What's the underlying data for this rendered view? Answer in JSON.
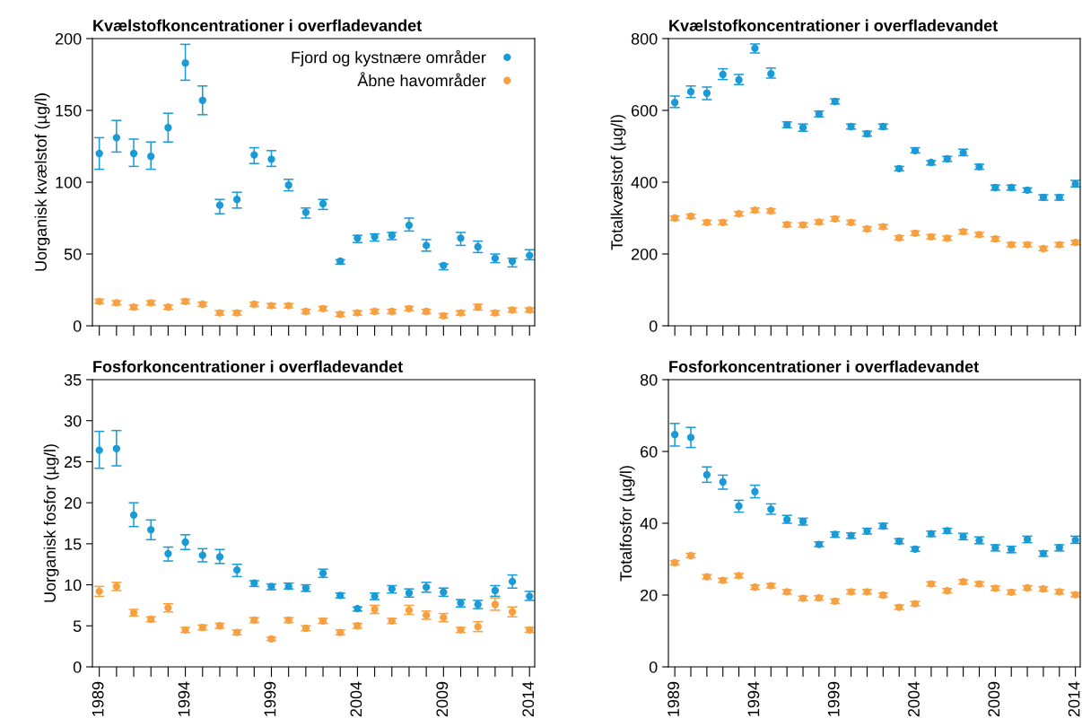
{
  "chart_data": [
    {
      "type": "scatter",
      "title": "Kvælstofkoncentrationer i overfladevandet",
      "ylabel": "Uorganisk kvælstof (µg/l)",
      "x": [
        1989,
        1990,
        1991,
        1992,
        1993,
        1994,
        1995,
        1996,
        1997,
        1998,
        1999,
        2000,
        2001,
        2002,
        2003,
        2004,
        2005,
        2006,
        2007,
        2008,
        2009,
        2010,
        2011,
        2012,
        2013,
        2014
      ],
      "xlim": [
        1988.6,
        2014.3
      ],
      "xticks": [
        1989,
        {
          "value": 1990,
          "label": null
        },
        {
          "value": 1991,
          "label": null
        },
        {
          "value": 1992,
          "label": null
        },
        {
          "value": 1993,
          "label": null
        },
        1994,
        {
          "value": 1995,
          "label": null
        },
        {
          "value": 1996,
          "label": null
        },
        {
          "value": 1997,
          "label": null
        },
        {
          "value": 1998,
          "label": null
        },
        1999,
        {
          "value": 2000,
          "label": null
        },
        {
          "value": 2001,
          "label": null
        },
        {
          "value": 2002,
          "label": null
        },
        {
          "value": 2003,
          "label": null
        },
        2004,
        {
          "value": 2005,
          "label": null
        },
        {
          "value": 2006,
          "label": null
        },
        {
          "value": 2007,
          "label": null
        },
        {
          "value": 2008,
          "label": null
        },
        2009,
        {
          "value": 2010,
          "label": null
        },
        {
          "value": 2011,
          "label": null
        },
        {
          "value": 2012,
          "label": null
        },
        {
          "value": 2013,
          "label": null
        },
        2014
      ],
      "ylim": [
        0,
        200
      ],
      "yticks": [
        0,
        50,
        100,
        150,
        200
      ],
      "tick_labels": "y",
      "grid": false,
      "legend": "top right",
      "marker": "circle",
      "series": [
        {
          "name": "Fjord og kystnære områder",
          "color": "#1a9ad6",
          "values": [
            120,
            131,
            120,
            118,
            138,
            183,
            157,
            84,
            88,
            119,
            116,
            98,
            79,
            85,
            45,
            61,
            62,
            63,
            70,
            56,
            42,
            61,
            55,
            47,
            45,
            49
          ],
          "errors": [
            [
              109,
              131
            ],
            [
              121,
              143
            ],
            [
              111,
              130
            ],
            [
              109,
              128
            ],
            [
              128,
              148
            ],
            [
              171,
              196
            ],
            [
              147,
              167
            ],
            [
              78,
              88
            ],
            [
              82,
              93
            ],
            [
              113,
              124
            ],
            [
              111,
              122
            ],
            [
              94,
              102
            ],
            [
              75,
              82
            ],
            [
              81,
              88
            ],
            [
              43,
              46
            ],
            [
              58,
              63
            ],
            [
              59,
              64
            ],
            [
              60,
              65
            ],
            [
              66,
              75
            ],
            [
              52,
              60
            ],
            [
              39,
              43
            ],
            [
              56,
              65
            ],
            [
              51,
              59
            ],
            [
              44,
              50
            ],
            [
              41,
              47
            ],
            [
              46,
              53
            ]
          ]
        },
        {
          "name": "Åbne havområder",
          "color": "#f7a040",
          "values": [
            17,
            16,
            13,
            16,
            13,
            17,
            15,
            9,
            9,
            15,
            14,
            14,
            10,
            12,
            8,
            9,
            10,
            10,
            12,
            10,
            7,
            9,
            13,
            9,
            11,
            11
          ],
          "errors": [
            1.5,
            1.5,
            1.5,
            1.5,
            1.5,
            1.5,
            1.5,
            1.5,
            1.5,
            1.5,
            1.5,
            1.5,
            1.5,
            1.5,
            1.5,
            1.5,
            1.5,
            1.5,
            1.5,
            1.5,
            1.5,
            1.5,
            2,
            1.5,
            1.5,
            1.5
          ]
        }
      ]
    },
    {
      "type": "scatter",
      "title": "Kvælstofkoncentrationer i overfladevandet",
      "ylabel": "Totalkvælstof (µg/l)",
      "x": [
        1989,
        1990,
        1991,
        1992,
        1993,
        1994,
        1995,
        1996,
        1997,
        1998,
        1999,
        2000,
        2001,
        2002,
        2003,
        2004,
        2005,
        2006,
        2007,
        2008,
        2009,
        2010,
        2011,
        2012,
        2013,
        2014
      ],
      "xlim": [
        1988.6,
        2014.3
      ],
      "xticks": [
        1989,
        {
          "value": 1990,
          "label": null
        },
        {
          "value": 1991,
          "label": null
        },
        {
          "value": 1992,
          "label": null
        },
        {
          "value": 1993,
          "label": null
        },
        1994,
        {
          "value": 1995,
          "label": null
        },
        {
          "value": 1996,
          "label": null
        },
        {
          "value": 1997,
          "label": null
        },
        {
          "value": 1998,
          "label": null
        },
        1999,
        {
          "value": 2000,
          "label": null
        },
        {
          "value": 2001,
          "label": null
        },
        {
          "value": 2002,
          "label": null
        },
        {
          "value": 2003,
          "label": null
        },
        2004,
        {
          "value": 2005,
          "label": null
        },
        {
          "value": 2006,
          "label": null
        },
        {
          "value": 2007,
          "label": null
        },
        {
          "value": 2008,
          "label": null
        },
        2009,
        {
          "value": 2010,
          "label": null
        },
        {
          "value": 2011,
          "label": null
        },
        {
          "value": 2012,
          "label": null
        },
        {
          "value": 2013,
          "label": null
        },
        2014
      ],
      "ylim": [
        0,
        800
      ],
      "yticks": [
        0,
        200,
        400,
        600,
        800
      ],
      "tick_labels": "y",
      "grid": false,
      "marker": "circle",
      "series": [
        {
          "color": "#1a9ad6",
          "values": [
            622,
            652,
            648,
            700,
            685,
            773,
            702,
            560,
            552,
            590,
            625,
            555,
            535,
            555,
            438,
            488,
            455,
            465,
            482,
            443,
            385,
            385,
            378,
            358,
            358,
            395
          ],
          "errors": [
            [
              608,
              640
            ],
            [
              636,
              668
            ],
            [
              630,
              665
            ],
            [
              686,
              716
            ],
            [
              672,
              700
            ],
            [
              760,
              785
            ],
            [
              690,
              718
            ],
            [
              552,
              568
            ],
            [
              542,
              562
            ],
            [
              582,
              598
            ],
            [
              618,
              632
            ],
            [
              548,
              562
            ],
            [
              528,
              542
            ],
            [
              548,
              562
            ],
            [
              432,
              444
            ],
            [
              482,
              496
            ],
            [
              448,
              460
            ],
            [
              458,
              472
            ],
            [
              474,
              492
            ],
            [
              436,
              450
            ],
            [
              378,
              392
            ],
            [
              378,
              392
            ],
            [
              372,
              384
            ],
            [
              350,
              365
            ],
            [
              350,
              365
            ],
            [
              387,
              405
            ]
          ]
        },
        {
          "color": "#f7a040",
          "values": [
            300,
            305,
            288,
            288,
            312,
            322,
            320,
            282,
            281,
            289,
            298,
            288,
            270,
            276,
            245,
            258,
            248,
            244,
            262,
            254,
            242,
            226,
            226,
            215,
            226,
            232
          ],
          "errors": [
            6,
            6,
            6,
            6,
            6,
            6,
            6,
            6,
            6,
            6,
            6,
            6,
            6,
            6,
            6,
            6,
            6,
            6,
            6,
            6,
            6,
            6,
            6,
            6,
            6,
            6
          ]
        }
      ]
    },
    {
      "type": "scatter",
      "title": "Fosforkoncentrationer i overfladevandet",
      "ylabel": "Uorganisk fosfor (µg/l)",
      "x": [
        1989,
        1990,
        1991,
        1992,
        1993,
        1994,
        1995,
        1996,
        1997,
        1998,
        1999,
        2000,
        2001,
        2002,
        2003,
        2004,
        2005,
        2006,
        2007,
        2008,
        2009,
        2010,
        2011,
        2012,
        2013,
        2014
      ],
      "xlim": [
        1988.6,
        2014.3
      ],
      "xticks": [
        1989,
        {
          "value": 1990,
          "label": null
        },
        {
          "value": 1991,
          "label": null
        },
        {
          "value": 1992,
          "label": null
        },
        {
          "value": 1993,
          "label": null
        },
        1994,
        {
          "value": 1995,
          "label": null
        },
        {
          "value": 1996,
          "label": null
        },
        {
          "value": 1997,
          "label": null
        },
        {
          "value": 1998,
          "label": null
        },
        1999,
        {
          "value": 2000,
          "label": null
        },
        {
          "value": 2001,
          "label": null
        },
        {
          "value": 2002,
          "label": null
        },
        {
          "value": 2003,
          "label": null
        },
        2004,
        {
          "value": 2005,
          "label": null
        },
        {
          "value": 2006,
          "label": null
        },
        {
          "value": 2007,
          "label": null
        },
        {
          "value": 2008,
          "label": null
        },
        2009,
        {
          "value": 2010,
          "label": null
        },
        {
          "value": 2011,
          "label": null
        },
        {
          "value": 2012,
          "label": null
        },
        {
          "value": 2013,
          "label": null
        },
        2014
      ],
      "ylim": [
        0,
        35
      ],
      "yticks": [
        0,
        5,
        10,
        15,
        20,
        25,
        30,
        35
      ],
      "grid": false,
      "marker": "circle",
      "series": [
        {
          "color": "#1a9ad6",
          "values": [
            26.4,
            26.6,
            18.5,
            16.7,
            13.8,
            15.2,
            13.6,
            13.4,
            11.8,
            10.2,
            9.8,
            9.8,
            9.6,
            11.4,
            8.7,
            7.1,
            8.6,
            9.5,
            9.0,
            9.7,
            9.1,
            7.8,
            7.6,
            9.3,
            10.4,
            8.6
          ],
          "errors": [
            [
              24.2,
              28.7
            ],
            [
              24.5,
              28.8
            ],
            [
              17.1,
              20.0
            ],
            [
              15.5,
              17.9
            ],
            [
              12.9,
              14.6
            ],
            [
              14.3,
              16.1
            ],
            [
              12.8,
              14.4
            ],
            [
              12.6,
              14.3
            ],
            [
              11.0,
              12.5
            ],
            [
              9.8,
              10.5
            ],
            [
              9.4,
              10.1
            ],
            [
              9.5,
              10.2
            ],
            [
              9.2,
              10.0
            ],
            [
              10.9,
              11.9
            ],
            [
              8.4,
              9.0
            ],
            [
              6.8,
              7.3
            ],
            [
              8.2,
              9.0
            ],
            [
              9.0,
              9.9
            ],
            [
              8.5,
              9.5
            ],
            [
              9.1,
              10.3
            ],
            [
              8.6,
              9.6
            ],
            [
              7.3,
              8.2
            ],
            [
              7.1,
              8.1
            ],
            [
              8.6,
              9.9
            ],
            [
              9.6,
              11.2
            ],
            [
              8.1,
              9.2
            ]
          ]
        },
        {
          "color": "#f7a040",
          "values": [
            9.2,
            9.8,
            6.6,
            5.8,
            7.2,
            4.5,
            4.8,
            5.0,
            4.2,
            5.7,
            3.4,
            5.7,
            4.7,
            5.6,
            4.2,
            5.0,
            7.0,
            5.6,
            6.9,
            6.3,
            6.0,
            4.5,
            4.9,
            7.6,
            6.7,
            4.5
          ],
          "errors": [
            [
              8.6,
              9.8
            ],
            [
              9.3,
              10.3
            ],
            [
              6.2,
              7.0
            ],
            [
              5.5,
              6.1
            ],
            [
              6.7,
              7.7
            ],
            0.3,
            0.3,
            0.3,
            0.3,
            0.3,
            0.2,
            0.3,
            0.3,
            0.3,
            0.3,
            0.3,
            [
              6.5,
              7.5
            ],
            0.3,
            [
              6.4,
              7.5
            ],
            [
              5.8,
              6.8
            ],
            [
              5.5,
              6.5
            ],
            0.3,
            [
              4.3,
              5.5
            ],
            [
              6.9,
              8.4
            ],
            [
              6.1,
              7.3
            ],
            0.3
          ]
        }
      ]
    },
    {
      "type": "scatter",
      "title": "Fosforkoncentrationer i overfladevandet",
      "ylabel": "Totalfosfor (µg/l)",
      "x": [
        1989,
        1990,
        1991,
        1992,
        1993,
        1994,
        1995,
        1996,
        1997,
        1998,
        1999,
        2000,
        2001,
        2002,
        2003,
        2004,
        2005,
        2006,
        2007,
        2008,
        2009,
        2010,
        2011,
        2012,
        2013,
        2014
      ],
      "xlim": [
        1988.6,
        2014.3
      ],
      "xticks": [
        1989,
        {
          "value": 1990,
          "label": null
        },
        {
          "value": 1991,
          "label": null
        },
        {
          "value": 1992,
          "label": null
        },
        {
          "value": 1993,
          "label": null
        },
        1994,
        {
          "value": 1995,
          "label": null
        },
        {
          "value": 1996,
          "label": null
        },
        {
          "value": 1997,
          "label": null
        },
        {
          "value": 1998,
          "label": null
        },
        1999,
        {
          "value": 2000,
          "label": null
        },
        {
          "value": 2001,
          "label": null
        },
        {
          "value": 2002,
          "label": null
        },
        {
          "value": 2003,
          "label": null
        },
        2004,
        {
          "value": 2005,
          "label": null
        },
        {
          "value": 2006,
          "label": null
        },
        {
          "value": 2007,
          "label": null
        },
        {
          "value": 2008,
          "label": null
        },
        2009,
        {
          "value": 2010,
          "label": null
        },
        {
          "value": 2011,
          "label": null
        },
        {
          "value": 2012,
          "label": null
        },
        {
          "value": 2013,
          "label": null
        },
        2014
      ],
      "ylim": [
        0,
        80
      ],
      "yticks": [
        0,
        20,
        40,
        60,
        80
      ],
      "grid": false,
      "marker": "circle",
      "series": [
        {
          "color": "#1a9ad6",
          "values": [
            64.7,
            63.9,
            53.5,
            51.5,
            44.8,
            48.8,
            43.9,
            41.0,
            40.5,
            34.1,
            36.9,
            36.6,
            37.8,
            39.2,
            35.0,
            32.8,
            37.1,
            37.9,
            36.3,
            35.2,
            33.2,
            32.7,
            35.5,
            31.6,
            33.2,
            35.3
          ],
          "errors": [
            [
              61.5,
              67.8
            ],
            [
              61.1,
              66.7
            ],
            [
              51.4,
              55.7
            ],
            [
              49.5,
              53.4
            ],
            [
              43.1,
              46.4
            ],
            [
              47.1,
              50.6
            ],
            [
              42.5,
              45.4
            ],
            [
              40.0,
              42.2
            ],
            [
              39.5,
              41.4
            ],
            [
              33.5,
              34.8
            ],
            [
              36.1,
              37.6
            ],
            [
              35.8,
              37.3
            ],
            [
              37.0,
              38.6
            ],
            [
              38.5,
              40.0
            ],
            [
              34.3,
              35.7
            ],
            [
              32.2,
              33.4
            ],
            [
              36.3,
              37.8
            ],
            [
              37.2,
              38.6
            ],
            [
              35.4,
              37.2
            ],
            [
              34.3,
              36.2
            ],
            [
              32.3,
              34.0
            ],
            [
              31.8,
              33.6
            ],
            [
              34.6,
              36.4
            ],
            [
              30.8,
              32.3
            ],
            [
              32.3,
              34.0
            ],
            [
              34.4,
              36.4
            ]
          ]
        },
        {
          "color": "#f7a040",
          "values": [
            29.0,
            31.0,
            25.1,
            24.1,
            25.4,
            22.2,
            22.6,
            20.9,
            19.1,
            19.2,
            18.3,
            20.9,
            20.9,
            20.0,
            16.6,
            17.6,
            23.1,
            21.2,
            23.7,
            23.1,
            21.9,
            20.8,
            22.0,
            21.7,
            20.9,
            20.1
          ],
          "errors": [
            0.6,
            0.6,
            0.6,
            0.6,
            0.6,
            0.6,
            0.6,
            0.6,
            0.6,
            0.6,
            0.6,
            0.6,
            0.6,
            0.6,
            0.6,
            0.6,
            0.6,
            0.6,
            0.6,
            0.6,
            0.6,
            0.6,
            0.6,
            0.6,
            0.6,
            0.6
          ]
        }
      ]
    }
  ]
}
